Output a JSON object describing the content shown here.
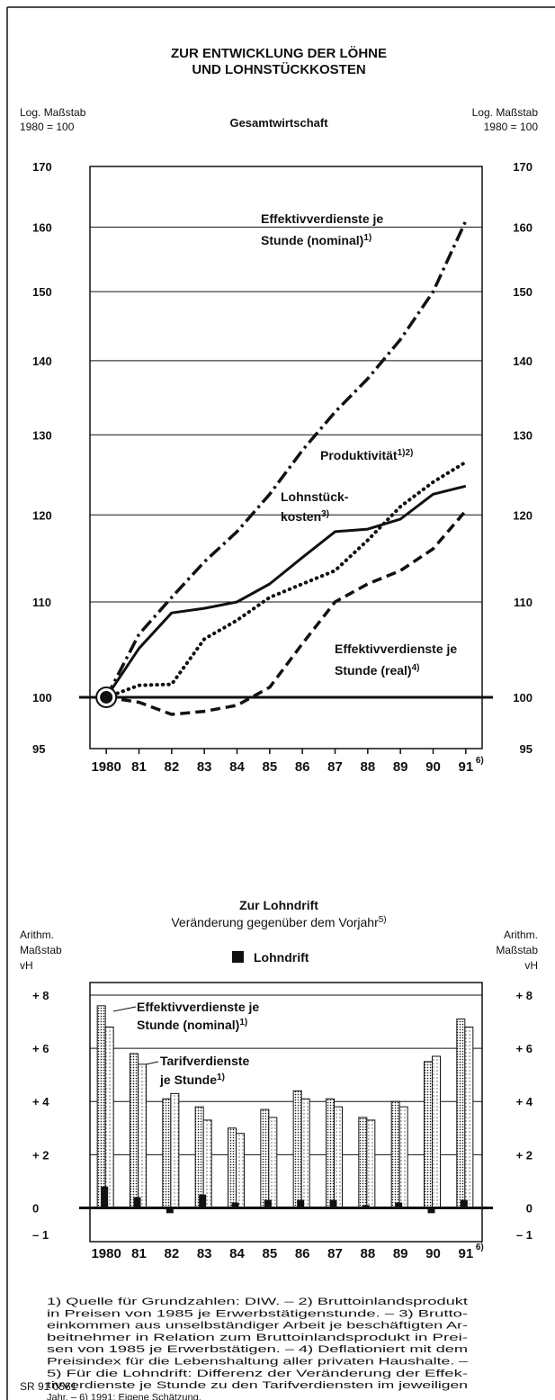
{
  "chart_data": [
    {
      "type": "line",
      "title": [
        "ZUR ENTWICKLUNG DER LÖHNE",
        "UND LOHNSTÜCKKOSTEN"
      ],
      "subtitle": "Gesamtwirtschaft",
      "y_axis_label": [
        "Log. Maßstab",
        "1980 = 100"
      ],
      "log_y": true,
      "ylim": [
        95,
        170
      ],
      "yticks": [
        95,
        100,
        110,
        120,
        130,
        140,
        150,
        160,
        170
      ],
      "baseline": 100,
      "xlim": [
        1979.5,
        1991.5
      ],
      "xticks": [
        1980,
        {
          "value": 1981,
          "label": "81"
        },
        {
          "value": 1982,
          "label": "82"
        },
        {
          "value": 1983,
          "label": "83"
        },
        {
          "value": 1984,
          "label": "84"
        },
        {
          "value": 1985,
          "label": "85"
        },
        {
          "value": 1986,
          "label": "86"
        },
        {
          "value": 1987,
          "label": "87"
        },
        {
          "value": 1988,
          "label": "88"
        },
        {
          "value": 1989,
          "label": "89"
        },
        {
          "value": 1990,
          "label": "90"
        },
        {
          "value": 1991,
          "label": "91"
        }
      ],
      "x_note": "6)",
      "x": [
        1980,
        1981,
        1982,
        1983,
        1984,
        1985,
        1986,
        1987,
        1988,
        1989,
        1990,
        1991
      ],
      "grid": true,
      "series": [
        {
          "color": "#111",
          "style": "dashdot",
          "values": [
            100,
            106.5,
            110.5,
            114.5,
            118,
            122.5,
            128,
            133,
            137.5,
            143,
            150,
            161
          ]
        },
        {
          "color": "#111",
          "style": "dotted",
          "values": [
            100,
            101.2,
            101.3,
            106,
            108,
            110.5,
            112,
            113.5,
            117,
            121,
            124,
            126.5
          ]
        },
        {
          "color": "#111",
          "style": "solid",
          "values": [
            100,
            105,
            108.8,
            109.3,
            110,
            112,
            115,
            118,
            118.3,
            119.5,
            122.5,
            123.5
          ]
        },
        {
          "color": "#111",
          "style": "dashed",
          "values": [
            100,
            99.5,
            98.3,
            98.6,
            99.2,
            101,
            105.5,
            110,
            112,
            113.5,
            116,
            120.5
          ]
        }
      ],
      "annotations": [
        {
          "lines": [
            "Effektivverdienste je",
            "Stunde (nominal)"
          ],
          "note": "1)"
        },
        {
          "lines": [
            "Produktivität"
          ],
          "note": "1)2)"
        },
        {
          "lines": [
            "Lohnstück-",
            "kosten"
          ],
          "note": "3)"
        },
        {
          "lines": [
            "Effektivverdienste je",
            "Stunde (real)"
          ],
          "note": "4)"
        }
      ]
    },
    {
      "type": "bar",
      "title": "Zur Lohndrift",
      "subtitle": "Veränderung gegenüber dem Vorjahr",
      "subtitle_note": "5)",
      "y_axis_label": [
        "Arithm.",
        "Maßstab",
        "vH"
      ],
      "ylim": [
        -1,
        8
      ],
      "yticks": [
        {
          "value": 8,
          "label": "+ 8"
        },
        {
          "value": 6,
          "label": "+ 6"
        },
        {
          "value": 4,
          "label": "+ 4"
        },
        {
          "value": 2,
          "label": "+ 2"
        },
        0,
        {
          "value": -1,
          "label": "– 1"
        }
      ],
      "baseline": 0,
      "grid": true,
      "categories": [
        "1980",
        "81",
        "82",
        "83",
        "84",
        "85",
        "86",
        "87",
        "88",
        "89",
        "90",
        "91"
      ],
      "x_note": "6)",
      "series": [
        {
          "color": "#111",
          "fill": "dense-dots",
          "values": [
            7.6,
            5.8,
            4.1,
            3.8,
            3.0,
            3.7,
            4.4,
            4.1,
            3.4,
            4.0,
            5.5,
            7.1
          ]
        },
        {
          "color": "#111",
          "fill": "sparse-dots",
          "values": [
            6.8,
            5.4,
            4.3,
            3.3,
            2.8,
            3.4,
            4.1,
            3.8,
            3.3,
            3.8,
            5.7,
            6.8
          ]
        },
        {
          "name": "Lohndrift",
          "color": "#111",
          "fill": "solid",
          "values": [
            0.8,
            0.4,
            -0.2,
            0.5,
            0.2,
            0.3,
            0.3,
            0.3,
            0.1,
            0.2,
            -0.2,
            0.3
          ]
        }
      ],
      "annotations": [
        {
          "lines": [
            "Effektivverdienste je",
            "Stunde (nominal)"
          ],
          "note": "1)"
        },
        {
          "lines": [
            "Tarifverdienste",
            "je Stunde"
          ],
          "note": "1)"
        }
      ]
    }
  ],
  "footnotes": [
    "1) Quelle für Grundzahlen: DIW. – 2) Bruttoinlandsprodukt",
    "in Preisen von 1985 je Erwerbstätigenstunde. – 3) Brutto-",
    "einkommen aus unselbständiger Arbeit je beschäftigten Ar-",
    "beitnehmer in Relation zum Bruttoinlandsprodukt in Prei-",
    "sen von 1985 je Erwerbstätigen. – 4) Deflationiert mit dem",
    "Preisindex für die Lebenshaltung aller privaten Haushalte. –",
    "5) Für die Lohndrift: Differenz der Veränderung der Effek-",
    "tivverdienste je Stunde zu den Tarifverdiensten im jeweiligen",
    "Jahr. – 6) 1991: Eigene Schätzung."
  ],
  "source": "SR 91 0561"
}
